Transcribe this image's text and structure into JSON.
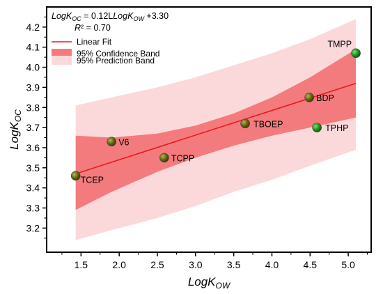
{
  "chart_data": {
    "type": "scatter",
    "xlabel": "LogKow",
    "ylabel": "LogKoc",
    "xlim": [
      1.05,
      5.3
    ],
    "ylim": [
      3.08,
      4.3
    ],
    "xticks": [
      1.5,
      2.0,
      2.5,
      3.0,
      3.5,
      4.0,
      4.5,
      5.0
    ],
    "yticks": [
      3.2,
      3.3,
      3.4,
      3.5,
      3.6,
      3.7,
      3.8,
      3.9,
      4.0,
      4.1,
      4.2
    ],
    "tick_labels_x": [
      "1.5",
      "2.0",
      "2.5",
      "3.0",
      "3.5",
      "4.0",
      "4.5",
      "5.0"
    ],
    "tick_labels_y": [
      "3.2",
      "3.3",
      "3.4",
      "3.5",
      "3.6",
      "3.7",
      "3.8",
      "3.9",
      "4.0",
      "4.1",
      "4.2"
    ],
    "points": [
      {
        "label": "TCEP",
        "x": 1.43,
        "y": 3.46,
        "color": "#6b6b10"
      },
      {
        "label": "V6",
        "x": 1.9,
        "y": 3.63,
        "color": "#6b6b10"
      },
      {
        "label": "TCPP",
        "x": 2.59,
        "y": 3.55,
        "color": "#6b6b10"
      },
      {
        "label": "TBOEP",
        "x": 3.65,
        "y": 3.72,
        "color": "#6b6b10"
      },
      {
        "label": "BDP",
        "x": 4.49,
        "y": 3.85,
        "color": "#6b6b10"
      },
      {
        "label": "TPHP",
        "x": 4.59,
        "y": 3.7,
        "color": "#1f9e1f"
      },
      {
        "label": "TMPP",
        "x": 5.1,
        "y": 4.07,
        "color": "#1f9e1f"
      }
    ],
    "fit": {
      "x": [
        1.43,
        5.1
      ],
      "y": [
        3.47,
        3.92
      ]
    },
    "confidence_band": {
      "x": [
        1.43,
        1.9,
        2.5,
        3.0,
        3.5,
        4.0,
        4.5,
        5.1
      ],
      "upper": [
        3.66,
        3.65,
        3.67,
        3.71,
        3.77,
        3.85,
        3.95,
        4.09
      ],
      "lower": [
        3.29,
        3.38,
        3.48,
        3.55,
        3.61,
        3.66,
        3.7,
        3.75
      ]
    },
    "prediction_band": {
      "x": [
        1.43,
        1.9,
        2.5,
        3.0,
        3.5,
        4.0,
        4.5,
        5.1
      ],
      "upper": [
        3.81,
        3.85,
        3.9,
        3.95,
        4.01,
        4.07,
        4.14,
        4.24
      ],
      "lower": [
        3.14,
        3.19,
        3.25,
        3.31,
        3.38,
        3.44,
        3.51,
        3.59
      ]
    },
    "legend": [
      {
        "label": "Linear Fit",
        "kind": "line",
        "color": "#e8191c"
      },
      {
        "label": "95% Confidence Band",
        "kind": "box",
        "color": "#f47b7d"
      },
      {
        "label": "95% Prediction Band",
        "kind": "box",
        "color": "#fbd9da"
      }
    ],
    "legend_position": "top-left",
    "equation": {
      "line1": "LogKoc = 0.12L LogKow +3.30",
      "line2": "R² = 0.70"
    },
    "grid": false
  }
}
